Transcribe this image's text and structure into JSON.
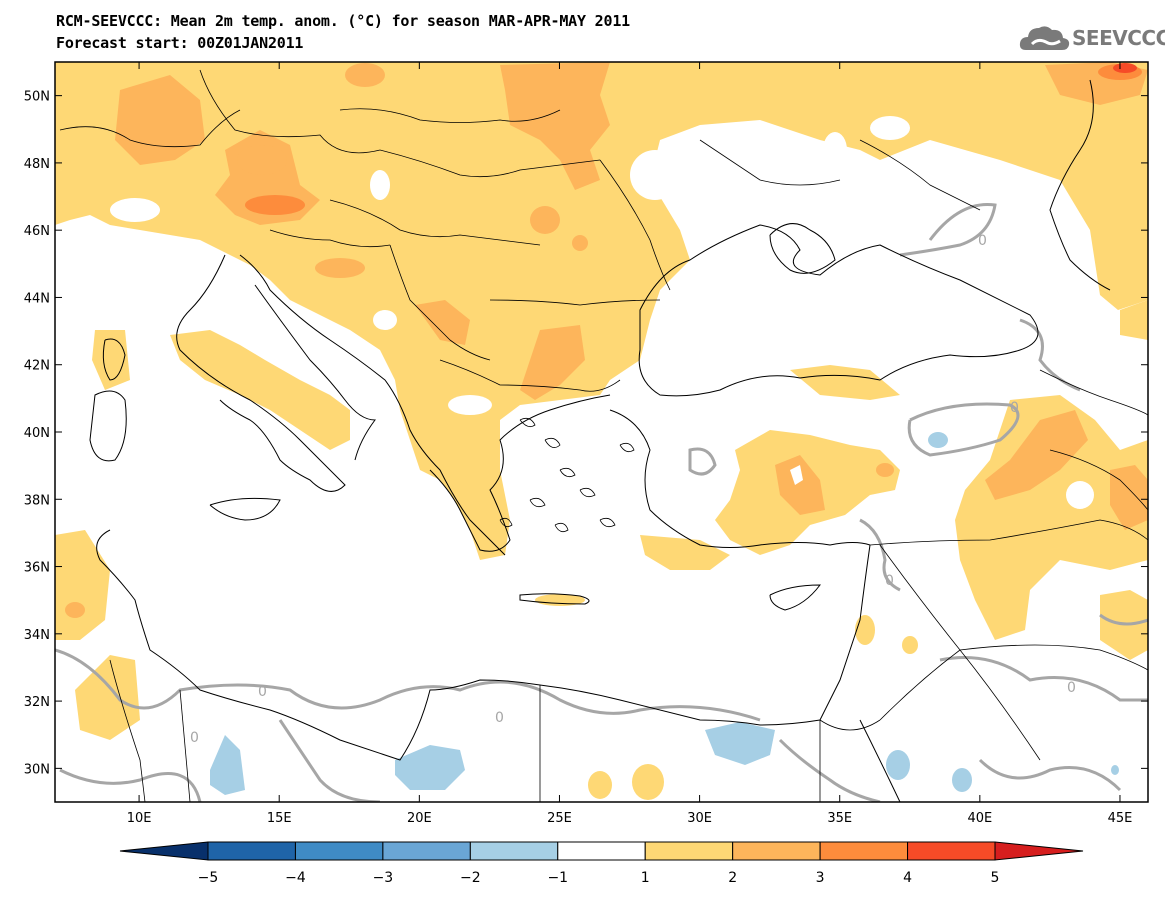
{
  "title": {
    "line1": "RCM-SEEVCCC: Mean 2m temp. anom. (°C) for season MAR-APR-MAY 2011",
    "line2": "Forecast start: 00Z01JAN2011"
  },
  "logo": {
    "text": "SEEVCCC",
    "icon": "cloud-icon"
  },
  "map": {
    "lon_range": [
      7,
      46
    ],
    "lat_range": [
      29,
      51
    ],
    "lon_ticks": [
      {
        "value": 10,
        "label": "10E"
      },
      {
        "value": 15,
        "label": "15E"
      },
      {
        "value": 20,
        "label": "20E"
      },
      {
        "value": 25,
        "label": "25E"
      },
      {
        "value": 30,
        "label": "30E"
      },
      {
        "value": 35,
        "label": "35E"
      },
      {
        "value": 40,
        "label": "40E"
      },
      {
        "value": 45,
        "label": "45E"
      }
    ],
    "lat_ticks": [
      {
        "value": 30,
        "label": "30N"
      },
      {
        "value": 32,
        "label": "32N"
      },
      {
        "value": 34,
        "label": "34N"
      },
      {
        "value": 36,
        "label": "36N"
      },
      {
        "value": 38,
        "label": "38N"
      },
      {
        "value": 40,
        "label": "40N"
      },
      {
        "value": 42,
        "label": "42N"
      },
      {
        "value": 44,
        "label": "44N"
      },
      {
        "value": 46,
        "label": "46N"
      },
      {
        "value": 48,
        "label": "48N"
      },
      {
        "value": 50,
        "label": "50N"
      }
    ],
    "contour_label": "0"
  },
  "colorbar": {
    "labels": [
      "−5",
      "−4",
      "−3",
      "−2",
      "−1",
      "1",
      "2",
      "3",
      "4",
      "5"
    ],
    "colors": [
      "#08306b",
      "#1f64a8",
      "#3f8bc5",
      "#6aa6d5",
      "#a6cfe5",
      "#ffffff",
      "#fed875",
      "#fdb55b",
      "#fd8c3c",
      "#f64b27",
      "#d61e1e"
    ]
  }
}
